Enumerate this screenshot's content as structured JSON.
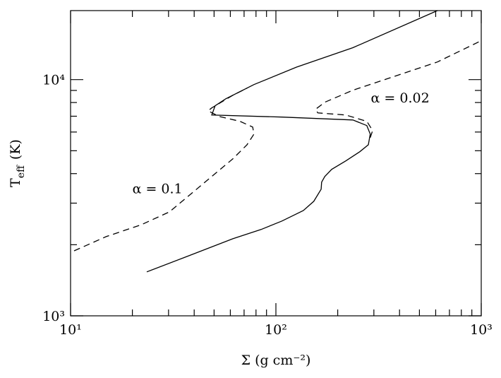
{
  "chart_data": {
    "type": "line",
    "xlabel": "Σ (g cm⁻²)",
    "ylabel": [
      "T",
      "eff",
      "(K)"
    ],
    "xscale": "log",
    "yscale": "log",
    "xlim": [
      10,
      1000
    ],
    "ylim": [
      1000,
      19600
    ],
    "xticks": [
      {
        "value": 10,
        "label": "10¹"
      },
      {
        "value": 100,
        "label": "10²"
      },
      {
        "value": 1000,
        "label": "10³"
      }
    ],
    "yticks": [
      {
        "value": 1000,
        "label": "10³"
      },
      {
        "value": 10000,
        "label": "10⁴"
      }
    ],
    "xminorticks": [
      20,
      30,
      40,
      50,
      60,
      70,
      80,
      90,
      200,
      300,
      400,
      500,
      600,
      700,
      800,
      900
    ],
    "yminorticks": [
      2000,
      3000,
      4000,
      5000,
      6000,
      7000,
      8000,
      9000
    ],
    "annotations": [
      {
        "text": "α = 0.1",
        "x": 20,
        "y": 3300
      },
      {
        "text": "α = 0.02",
        "x": 290,
        "y": 8000
      }
    ],
    "series": [
      {
        "color": "#000000",
        "dash": "solid",
        "x": [
          23.5,
          35.5,
          61.7,
          84.7,
          107,
          136,
          153,
          166,
          167,
          173,
          187,
          219,
          256,
          282,
          288,
          277,
          237,
          107,
          48.7,
          50.6,
          57,
          78.2,
          126,
          237,
          612
        ],
        "values": [
          1535,
          1760,
          2120,
          2320,
          2520,
          2790,
          3055,
          3435,
          3680,
          3890,
          4170,
          4530,
          4950,
          5300,
          5880,
          6390,
          6750,
          6940,
          7080,
          7750,
          8300,
          9530,
          11300,
          13650,
          19600
        ]
      },
      {
        "color": "#000000",
        "dash": "dashed",
        "x": [
          10.4,
          14.9,
          22.1,
          30.3,
          38.4,
          48.7,
          61.7,
          72.3,
          78.2,
          77.1,
          66.8,
          52.7,
          46.8,
          48.7,
          61.7,
          72.3
        ],
        "values": [
          1885,
          2165,
          2430,
          2755,
          3270,
          3890,
          4620,
          5300,
          5880,
          6300,
          6660,
          6990,
          7380,
          7590,
          8590,
          9200
        ]
      },
      {
        "color": "#000000",
        "dash": "dashed",
        "x": [
          288,
          296,
          277,
          219,
          160,
          156,
          173,
          237,
          381,
          612,
          1000
        ],
        "values": [
          5680,
          6090,
          6660,
          7080,
          7230,
          7490,
          8020,
          9020,
          10350,
          11880,
          14620
        ]
      }
    ]
  }
}
